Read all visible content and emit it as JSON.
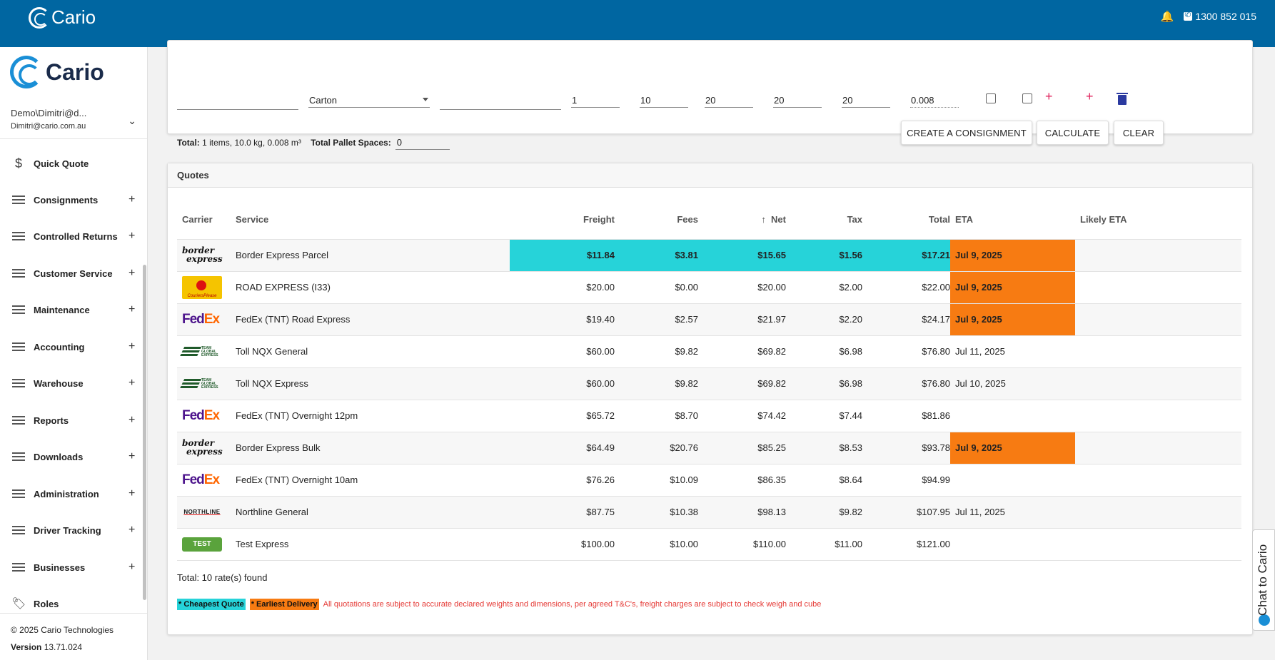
{
  "topbar": {
    "brand": "Cario",
    "phone": "1300 852 015"
  },
  "sidebar": {
    "brand": "Cario",
    "user_name": "Demo\\Dimitri@d...",
    "user_email": "Dimitri@cario.com.au",
    "items": [
      {
        "label": "Quick Quote",
        "icon": "dollar-icon",
        "expandable": false
      },
      {
        "label": "Consignments",
        "icon": "menu-icon",
        "expandable": true
      },
      {
        "label": "Controlled Returns",
        "icon": "menu-icon",
        "expandable": true
      },
      {
        "label": "Customer Service",
        "icon": "menu-icon",
        "expandable": true
      },
      {
        "label": "Maintenance",
        "icon": "menu-icon",
        "expandable": true
      },
      {
        "label": "Accounting",
        "icon": "menu-icon",
        "expandable": true
      },
      {
        "label": "Warehouse",
        "icon": "menu-icon",
        "expandable": true
      },
      {
        "label": "Reports",
        "icon": "menu-icon",
        "expandable": true
      },
      {
        "label": "Downloads",
        "icon": "menu-icon",
        "expandable": true
      },
      {
        "label": "Administration",
        "icon": "menu-icon",
        "expandable": true
      },
      {
        "label": "Driver Tracking",
        "icon": "menu-icon",
        "expandable": true
      },
      {
        "label": "Businesses",
        "icon": "menu-icon",
        "expandable": true
      },
      {
        "label": "Roles",
        "icon": "tag-icon",
        "expandable": false
      }
    ],
    "copyright": "© 2025 Cario Technologies",
    "version_label": "Version",
    "version": "13.71.024"
  },
  "item_row": {
    "description": "",
    "package_type": "Carton",
    "reference": "",
    "qty": "1",
    "weight": "10",
    "length": "20",
    "width": "20",
    "height": "20",
    "cubic": "0.008"
  },
  "totals": {
    "total_label": "Total:",
    "total_value": "1 items, 10.0 kg, 0.008 m³",
    "pallet_label": "Total Pallet Spaces:",
    "pallet_value": "0"
  },
  "buttons": {
    "create": "CREATE A CONSIGNMENT",
    "calculate": "CALCULATE",
    "clear": "CLEAR"
  },
  "quotes": {
    "title": "Quotes",
    "columns": {
      "carrier": "Carrier",
      "service": "Service",
      "freight": "Freight",
      "fees": "Fees",
      "net": "Net",
      "tax": "Tax",
      "total": "Total",
      "eta": "ETA",
      "likely_eta": "Likely ETA"
    },
    "rows": [
      {
        "logo": "border-express",
        "service": "Border Express Parcel",
        "freight": "$11.84",
        "fees": "$3.81",
        "net": "$15.65",
        "tax": "$1.56",
        "total": "$17.21",
        "eta": "Jul 9, 2025",
        "cheapest": true,
        "earliest": true
      },
      {
        "logo": "couriers-please",
        "service": "ROAD EXPRESS (I33)",
        "freight": "$20.00",
        "fees": "$0.00",
        "net": "$20.00",
        "tax": "$2.00",
        "total": "$22.00",
        "eta": "Jul 9, 2025",
        "cheapest": false,
        "earliest": true
      },
      {
        "logo": "fedex",
        "service": "FedEx (TNT) Road Express",
        "freight": "$19.40",
        "fees": "$2.57",
        "net": "$21.97",
        "tax": "$2.20",
        "total": "$24.17",
        "eta": "Jul 9, 2025",
        "cheapest": false,
        "earliest": true
      },
      {
        "logo": "team-global-express",
        "service": "Toll NQX General",
        "freight": "$60.00",
        "fees": "$9.82",
        "net": "$69.82",
        "tax": "$6.98",
        "total": "$76.80",
        "eta": "Jul 11, 2025",
        "cheapest": false,
        "earliest": false
      },
      {
        "logo": "team-global-express",
        "service": "Toll NQX Express",
        "freight": "$60.00",
        "fees": "$9.82",
        "net": "$69.82",
        "tax": "$6.98",
        "total": "$76.80",
        "eta": "Jul 10, 2025",
        "cheapest": false,
        "earliest": false
      },
      {
        "logo": "fedex",
        "service": "FedEx (TNT) Overnight 12pm",
        "freight": "$65.72",
        "fees": "$8.70",
        "net": "$74.42",
        "tax": "$7.44",
        "total": "$81.86",
        "eta": "",
        "cheapest": false,
        "earliest": false
      },
      {
        "logo": "border-express",
        "service": "Border Express Bulk",
        "freight": "$64.49",
        "fees": "$20.76",
        "net": "$85.25",
        "tax": "$8.53",
        "total": "$93.78",
        "eta": "Jul 9, 2025",
        "cheapest": false,
        "earliest": true
      },
      {
        "logo": "fedex",
        "service": "FedEx (TNT) Overnight 10am",
        "freight": "$76.26",
        "fees": "$10.09",
        "net": "$86.35",
        "tax": "$8.64",
        "total": "$94.99",
        "eta": "",
        "cheapest": false,
        "earliest": false
      },
      {
        "logo": "northline",
        "service": "Northline General",
        "freight": "$87.75",
        "fees": "$10.38",
        "net": "$98.13",
        "tax": "$9.82",
        "total": "$107.95",
        "eta": "Jul 11, 2025",
        "cheapest": false,
        "earliest": false
      },
      {
        "logo": "test",
        "service": "Test Express",
        "freight": "$100.00",
        "fees": "$10.00",
        "net": "$110.00",
        "tax": "$11.00",
        "total": "$121.00",
        "eta": "",
        "cheapest": false,
        "earliest": false
      }
    ],
    "rate_count": "Total: 10 rate(s) found",
    "legend_cheapest": "* Cheapest Quote",
    "legend_earliest": "* Earliest Delivery",
    "disclaimer": "All quotations are subject to accurate declared weights and dimensions, per agreed T&C's, freight charges are subject to check weigh and cube"
  },
  "logo_text": {
    "border_1": "border",
    "border_2": "express",
    "couriers_please": "CouriersPlease",
    "fedex_fe": "Fed",
    "fedex_ex": "Ex",
    "team_global": "TEAM GLOBAL EXPRESS",
    "northline": "NORTHLINE",
    "test": "TEST"
  },
  "chat": {
    "label": "Chat to Cario"
  },
  "colors": {
    "topbar": "#0066a1",
    "cheapest": "#26d3d9",
    "earliest": "#f77b12",
    "accent_pink": "#e0245e"
  }
}
